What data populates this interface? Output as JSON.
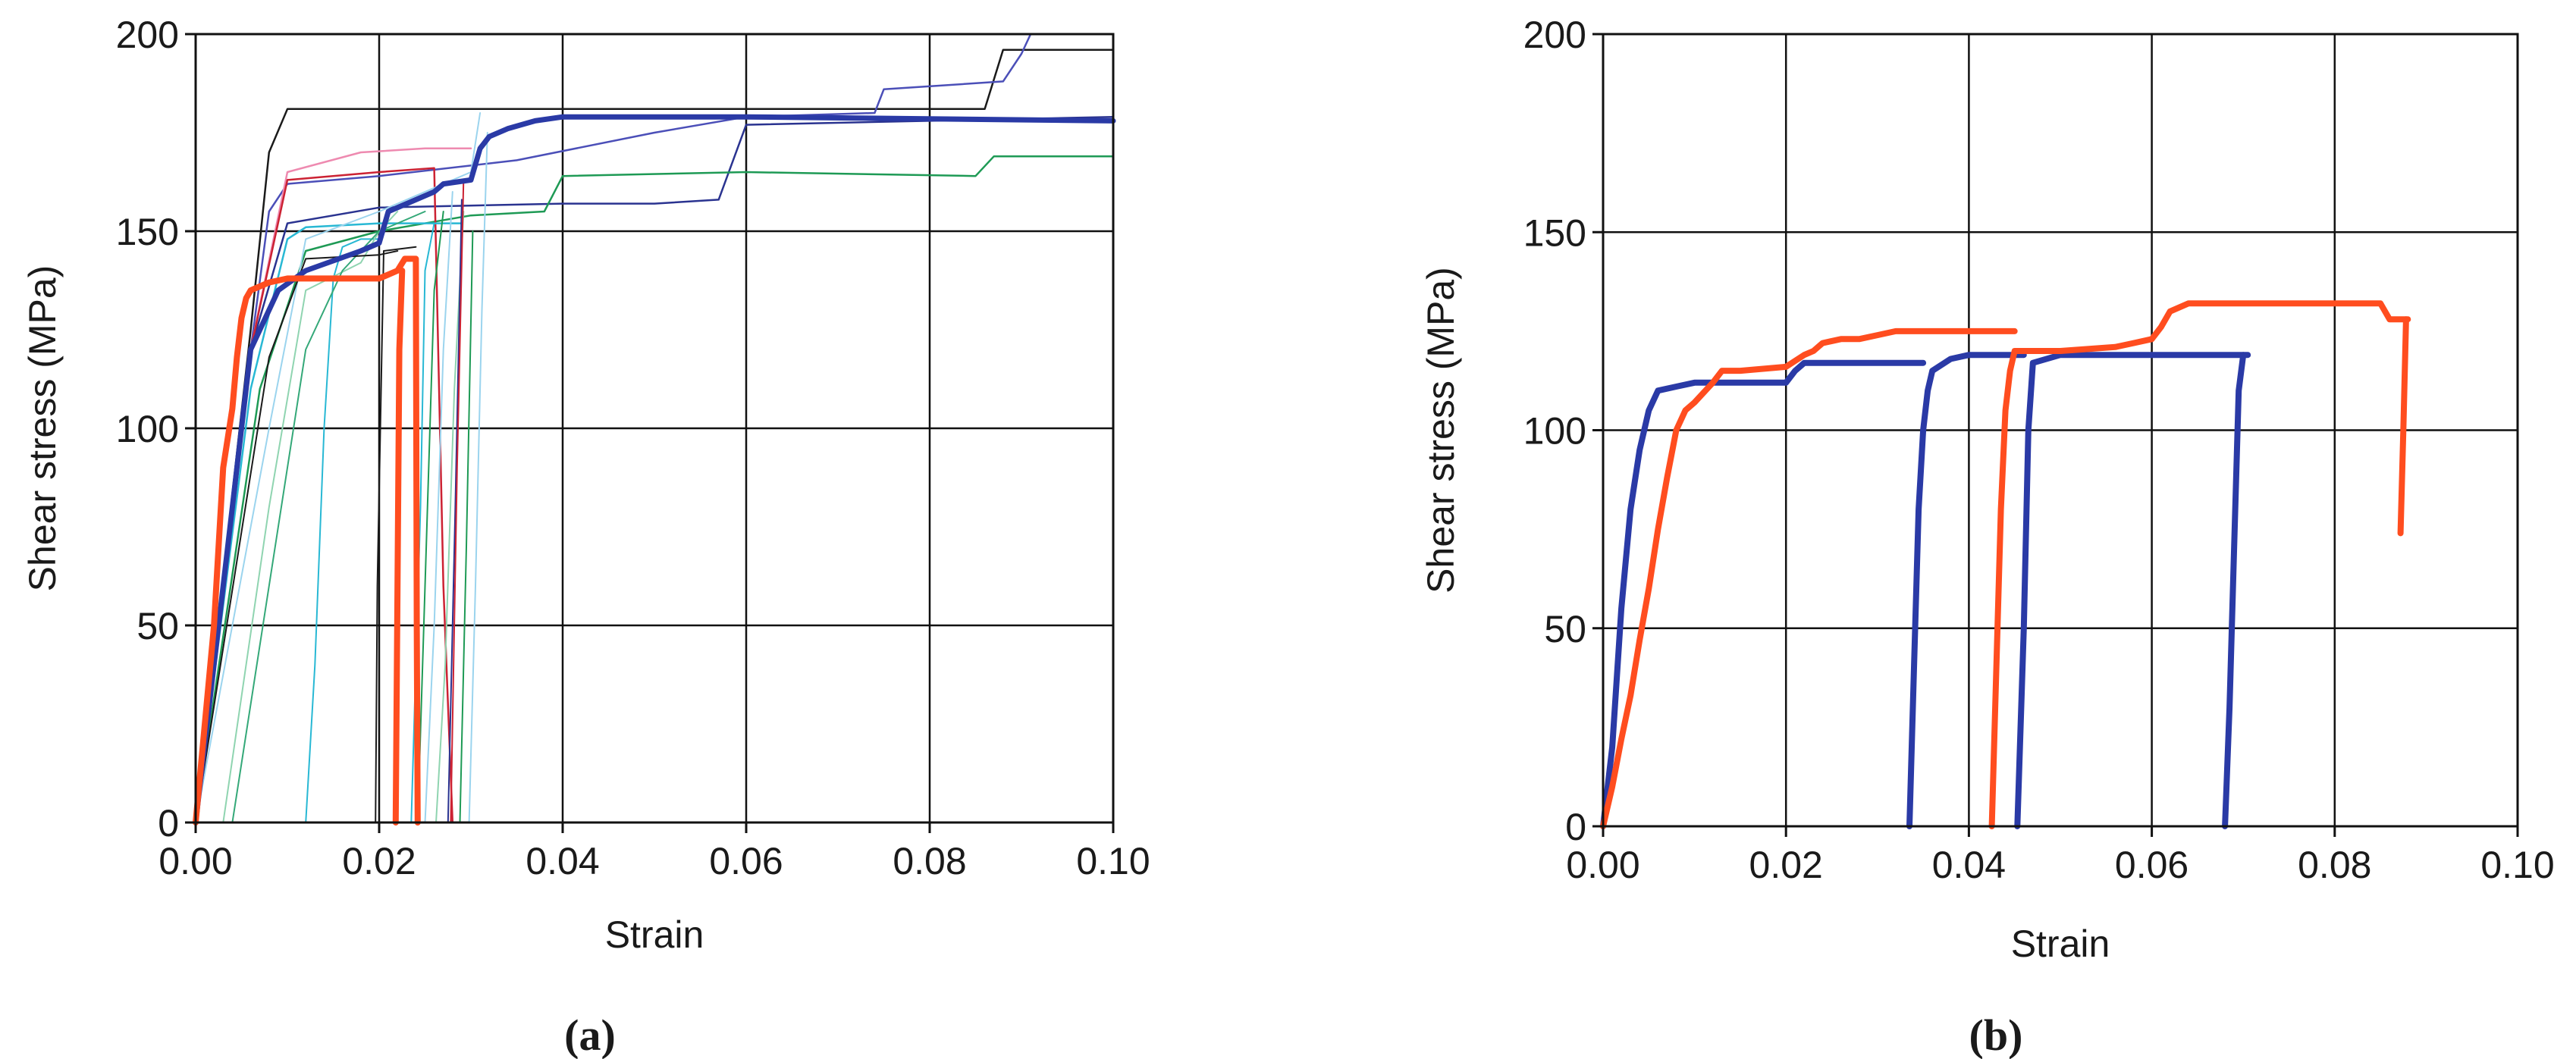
{
  "chart_data": [
    {
      "panel": "(a)",
      "type": "line",
      "title": "",
      "xlabel": "Strain",
      "ylabel": "Shear stress (MPa)",
      "xlim": [
        0,
        0.1
      ],
      "ylim": [
        0,
        200
      ],
      "xticks": [
        0,
        0.02,
        0.04,
        0.06,
        0.08,
        0.1
      ],
      "yticks": [
        0,
        50,
        100,
        150,
        200
      ],
      "xtick_labels": [
        "0.00",
        "0.02",
        "0.04",
        "0.06",
        "0.08",
        "0.10"
      ],
      "ytick_labels": [
        "0",
        "50",
        "100",
        "150",
        "200"
      ],
      "grid": true,
      "legend": "none",
      "series": [
        {
          "color": "#1a1a1a",
          "width": 2.5,
          "x": [
            0.0,
            0.006,
            0.008,
            0.01,
            0.02,
            0.04,
            0.06,
            0.086,
            0.088,
            0.1
          ],
          "y": [
            0,
            125,
            170,
            181,
            181,
            181,
            181,
            181,
            196,
            196
          ]
        },
        {
          "color": "#4b4fb8",
          "width": 2.5,
          "x": [
            0.0,
            0.006,
            0.008,
            0.01,
            0.02,
            0.035,
            0.05,
            0.06,
            0.074,
            0.075,
            0.088,
            0.09,
            0.091
          ],
          "y": [
            0,
            120,
            155,
            162,
            164,
            168,
            175,
            179,
            180,
            186,
            188,
            195,
            200
          ]
        },
        {
          "color": "#2a3390",
          "width": 2.5,
          "x": [
            0.0,
            0.006,
            0.01,
            0.02,
            0.04,
            0.05,
            0.057,
            0.06,
            0.08,
            0.1
          ],
          "y": [
            0,
            120,
            152,
            156,
            157,
            157,
            158,
            177,
            178,
            179
          ]
        },
        {
          "color": "#1e9a55",
          "width": 2.5,
          "x": [
            0.0,
            0.007,
            0.012,
            0.02,
            0.03,
            0.038,
            0.04,
            0.06,
            0.085,
            0.087,
            0.1
          ],
          "y": [
            0,
            110,
            145,
            150,
            154,
            155,
            164,
            165,
            164,
            169,
            169
          ]
        },
        {
          "color": "#ee8ab0",
          "width": 2.5,
          "x": [
            0.0,
            0.006,
            0.01,
            0.018,
            0.025,
            0.03
          ],
          "y": [
            0,
            120,
            165,
            170,
            171,
            171
          ]
        },
        {
          "color": "#cc2233",
          "width": 2.5,
          "x": [
            0.0,
            0.006,
            0.01,
            0.02,
            0.026,
            0.027,
            0.028
          ],
          "y": [
            0,
            120,
            163,
            165,
            166,
            60,
            0
          ]
        },
        {
          "color": "#28b8d4",
          "width": 2.5,
          "x": [
            0.0,
            0.006,
            0.01,
            0.012,
            0.02,
            0.025,
            0.029
          ],
          "y": [
            0,
            110,
            148,
            151,
            152,
            152,
            152
          ]
        },
        {
          "color": "#28b8d4",
          "width": 2.0,
          "x": [
            0.012,
            0.013,
            0.014,
            0.015,
            0.016,
            0.018,
            0.02
          ],
          "y": [
            0,
            40,
            100,
            138,
            146,
            148,
            148
          ]
        },
        {
          "color": "#9bd4ee",
          "width": 2.0,
          "x": [
            0.0,
            0.008,
            0.012,
            0.02,
            0.03,
            0.031
          ],
          "y": [
            0,
            100,
            148,
            155,
            165,
            180
          ]
        },
        {
          "color": "#8fd4b0",
          "width": 2.0,
          "x": [
            0.003,
            0.008,
            0.012,
            0.018,
            0.02,
            0.022
          ],
          "y": [
            0,
            80,
            135,
            142,
            150,
            155
          ]
        },
        {
          "color": "#34a878",
          "width": 2.0,
          "x": [
            0.004,
            0.008,
            0.012,
            0.016,
            0.02,
            0.025
          ],
          "y": [
            0,
            60,
            120,
            140,
            150,
            155
          ]
        },
        {
          "color": "#1a1a1a",
          "width": 2.0,
          "x": [
            0.0,
            0.008,
            0.012,
            0.02,
            0.022
          ],
          "y": [
            0,
            118,
            143,
            144,
            145
          ]
        },
        {
          "color": "#1a1a1a",
          "width": 2.0,
          "x": [
            0.0196,
            0.0198,
            0.0205,
            0.024
          ],
          "y": [
            0,
            60,
            145,
            146
          ]
        },
        {
          "color": "#28b8d4",
          "width": 2.0,
          "x": [
            0.0235,
            0.0245,
            0.025,
            0.026
          ],
          "y": [
            0,
            80,
            140,
            152
          ]
        },
        {
          "color": "#1e9a55",
          "width": 2.0,
          "x": [
            0.0242,
            0.025,
            0.026,
            0.027
          ],
          "y": [
            0,
            60,
            135,
            155
          ]
        },
        {
          "color": "#9bd4ee",
          "width": 2.0,
          "x": [
            0.025,
            0.026,
            0.027,
            0.028
          ],
          "y": [
            0,
            50,
            120,
            160
          ]
        },
        {
          "color": "#8fd4b0",
          "width": 2.0,
          "x": [
            0.0262,
            0.0272,
            0.0282,
            0.0292
          ],
          "y": [
            0,
            40,
            110,
            155
          ]
        },
        {
          "color": "#2a3390",
          "width": 2.0,
          "x": [
            0.0275,
            0.0283,
            0.029
          ],
          "y": [
            0,
            80,
            158
          ]
        },
        {
          "color": "#cc2233",
          "width": 2.0,
          "x": [
            0.0278,
            0.0285,
            0.0292
          ],
          "y": [
            0,
            90,
            163
          ]
        },
        {
          "color": "#1e9a55",
          "width": 2.0,
          "x": [
            0.0288,
            0.0295,
            0.0302
          ],
          "y": [
            0,
            70,
            150
          ]
        },
        {
          "color": "#9bd4ee",
          "width": 2.0,
          "x": [
            0.0298,
            0.0305,
            0.0312,
            0.0318
          ],
          "y": [
            0,
            60,
            130,
            175
          ]
        },
        {
          "color": "#2a3aa6",
          "width": 7,
          "x": [
            0.0,
            0.004,
            0.006,
            0.009,
            0.012,
            0.018,
            0.02,
            0.021,
            0.026,
            0.027,
            0.03,
            0.031,
            0.032,
            0.034,
            0.037,
            0.04,
            0.06,
            0.1
          ],
          "y": [
            0,
            80,
            120,
            135,
            140,
            145,
            147,
            155,
            160,
            162,
            163,
            171,
            174,
            176,
            178,
            179,
            179,
            178
          ]
        },
        {
          "color": "#ff4d1f",
          "width": 8,
          "x": [
            0.0,
            0.002,
            0.003,
            0.004,
            0.0045,
            0.005,
            0.0055,
            0.006,
            0.008,
            0.01,
            0.015,
            0.02,
            0.022,
            0.0228,
            0.0232,
            0.024,
            0.0241,
            0.0242
          ],
          "y": [
            0,
            50,
            90,
            105,
            118,
            128,
            133,
            135,
            137,
            138,
            138,
            138,
            140,
            143,
            143,
            143,
            50,
            0
          ]
        },
        {
          "color": "#ff4d1f",
          "width": 8,
          "x": [
            0.0218,
            0.022,
            0.0222,
            0.0225
          ],
          "y": [
            0,
            60,
            120,
            140
          ]
        }
      ]
    },
    {
      "panel": "(b)",
      "type": "line",
      "title": "",
      "xlabel": "Strain",
      "ylabel": "Shear stress (MPa)",
      "xlim": [
        0,
        0.1
      ],
      "ylim": [
        0,
        200
      ],
      "xticks": [
        0,
        0.02,
        0.04,
        0.06,
        0.08,
        0.1
      ],
      "yticks": [
        0,
        50,
        100,
        150,
        200
      ],
      "xtick_labels": [
        "0.00",
        "0.02",
        "0.04",
        "0.06",
        "0.08",
        "0.10"
      ],
      "ytick_labels": [
        "0",
        "50",
        "100",
        "150",
        "200"
      ],
      "grid": true,
      "legend": "none",
      "series": [
        {
          "color": "#2a3aa6",
          "width": 8,
          "x": [
            0.0,
            0.001,
            0.002,
            0.003,
            0.004,
            0.005,
            0.006,
            0.008,
            0.01,
            0.015,
            0.02,
            0.021,
            0.022,
            0.03,
            0.035
          ],
          "y": [
            0,
            20,
            55,
            80,
            95,
            105,
            110,
            111,
            112,
            112,
            112,
            115,
            117,
            117,
            117
          ]
        },
        {
          "color": "#2a3aa6",
          "width": 8,
          "x": [
            0.0335,
            0.034,
            0.0345,
            0.035,
            0.0355,
            0.036,
            0.038,
            0.04,
            0.046
          ],
          "y": [
            0,
            40,
            80,
            100,
            110,
            115,
            118,
            119,
            119
          ]
        },
        {
          "color": "#2a3aa6",
          "width": 8,
          "x": [
            0.0453,
            0.046,
            0.0465,
            0.047,
            0.05,
            0.06,
            0.07,
            0.0705
          ],
          "y": [
            0,
            50,
            100,
            117,
            119,
            119,
            119,
            119
          ]
        },
        {
          "color": "#2a3aa6",
          "width": 8,
          "x": [
            0.068,
            0.0685,
            0.069,
            0.0695,
            0.07
          ],
          "y": [
            0,
            30,
            70,
            110,
            119
          ]
        },
        {
          "color": "#ff4d1f",
          "width": 8,
          "x": [
            0.0,
            0.001,
            0.002,
            0.003,
            0.004,
            0.005,
            0.006,
            0.007,
            0.008,
            0.009,
            0.01,
            0.012,
            0.013,
            0.015,
            0.02,
            0.022,
            0.023,
            0.024,
            0.026,
            0.028,
            0.03,
            0.032,
            0.04,
            0.045
          ],
          "y": [
            0,
            10,
            22,
            33,
            47,
            60,
            75,
            88,
            100,
            105,
            107,
            112,
            115,
            115,
            116,
            119,
            120,
            122,
            123,
            123,
            124,
            125,
            125,
            125
          ]
        },
        {
          "color": "#ff4d1f",
          "width": 8,
          "x": [
            0.0425,
            0.043,
            0.0435,
            0.044,
            0.0445,
            0.045,
            0.046,
            0.05,
            0.056,
            0.058,
            0.06,
            0.061,
            0.062,
            0.064,
            0.07,
            0.08,
            0.085,
            0.086,
            0.087,
            0.088
          ],
          "y": [
            0,
            40,
            80,
            105,
            115,
            120,
            120,
            120,
            121,
            122,
            123,
            126,
            130,
            132,
            132,
            132,
            132,
            128,
            128,
            128
          ]
        },
        {
          "color": "#ff4d1f",
          "width": 8,
          "x": [
            0.0878,
            0.0875,
            0.0872
          ],
          "y": [
            128,
            100,
            74
          ]
        }
      ]
    }
  ]
}
